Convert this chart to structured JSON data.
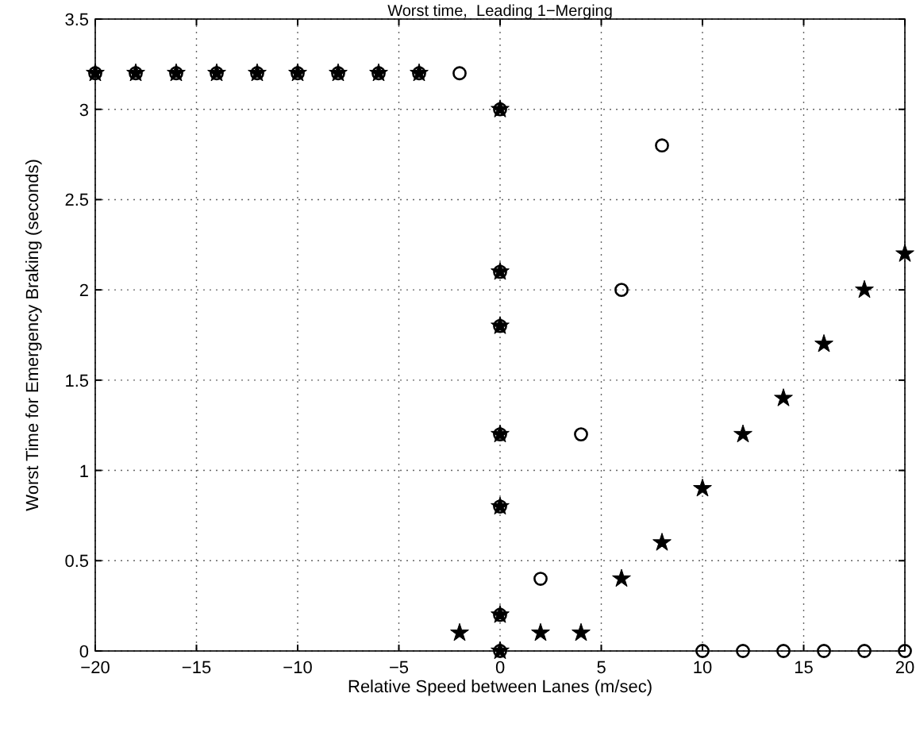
{
  "chart_data": {
    "type": "scatter",
    "title": "Worst time,  Leading 1−Merging",
    "xlabel": "Relative Speed between Lanes (m/sec)",
    "ylabel": "Worst Time for Emergency Braking (seconds)",
    "xlim": [
      -20,
      20
    ],
    "ylim": [
      0,
      3.5
    ],
    "xticks": [
      -20,
      -15,
      -10,
      -5,
      0,
      5,
      10,
      15,
      20
    ],
    "yticks": [
      0,
      0.5,
      1,
      1.5,
      2,
      2.5,
      3,
      3.5
    ],
    "grid": true,
    "series": [
      {
        "color": "#000000",
        "marker": "circle",
        "x": [
          -20,
          -18,
          -16,
          -14,
          -12,
          -10,
          -8,
          -6,
          -4,
          -2,
          0,
          0,
          0,
          0,
          0,
          0,
          0,
          2,
          4,
          6,
          8,
          10,
          12,
          14,
          16,
          18,
          20
        ],
        "values": [
          3.2,
          3.2,
          3.2,
          3.2,
          3.2,
          3.2,
          3.2,
          3.2,
          3.2,
          3.2,
          3.0,
          2.1,
          1.8,
          1.2,
          0.8,
          0.2,
          0,
          0.4,
          1.2,
          2.0,
          2.8,
          0,
          0,
          0,
          0,
          0,
          0
        ]
      },
      {
        "color": "#000000",
        "marker": "star",
        "x": [
          -20,
          -18,
          -16,
          -14,
          -12,
          -10,
          -8,
          -6,
          -4,
          -2,
          0,
          0,
          0,
          0,
          0,
          0,
          0,
          2,
          4,
          6,
          8,
          10,
          12,
          14,
          16,
          18,
          20
        ],
        "values": [
          3.2,
          3.2,
          3.2,
          3.2,
          3.2,
          3.2,
          3.2,
          3.2,
          3.2,
          0.1,
          3.0,
          2.1,
          1.8,
          1.2,
          0.8,
          0.2,
          0,
          0.1,
          0.1,
          0.4,
          0.6,
          0.9,
          1.2,
          1.4,
          1.7,
          2.0,
          2.2
        ]
      }
    ]
  }
}
